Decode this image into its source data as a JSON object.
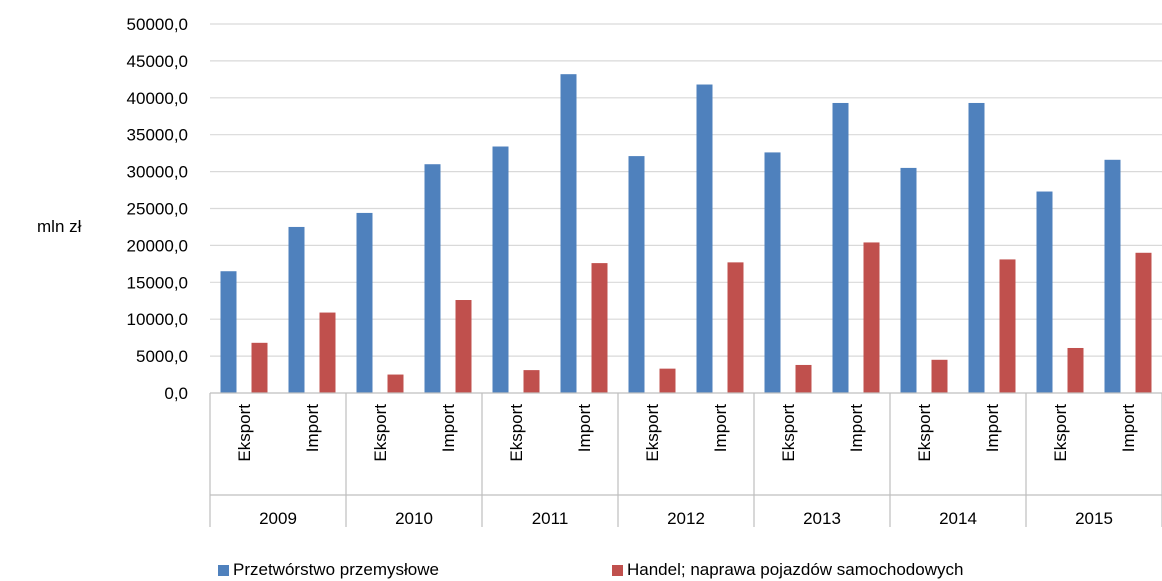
{
  "chart_data": {
    "type": "bar",
    "ylabel": "mln zł",
    "ylim": [
      0,
      50000
    ],
    "y_ticks": [
      "0,0",
      "5000,0",
      "10000,0",
      "15000,0",
      "20000,0",
      "25000,0",
      "30000,0",
      "35000,0",
      "40000,0",
      "45000,0",
      "50000,0"
    ],
    "y_tick_values": [
      0,
      5000,
      10000,
      15000,
      20000,
      25000,
      30000,
      35000,
      40000,
      45000,
      50000
    ],
    "grid": true,
    "legend_position": "bottom",
    "groups": [
      "2009",
      "2010",
      "2011",
      "2012",
      "2013",
      "2014",
      "2015"
    ],
    "subcategories": [
      "Eksport",
      "Import"
    ],
    "categories": [
      "2009 Eksport",
      "2009 Import",
      "2010 Eksport",
      "2010 Import",
      "2011 Eksport",
      "2011 Import",
      "2012 Eksport",
      "2012 Import",
      "2013 Eksport",
      "2013 Import",
      "2014 Eksport",
      "2014 Import",
      "2015 Eksport",
      "2015 Import"
    ],
    "series": [
      {
        "name": "Przetwórstwo przemysłowe",
        "color": "#4F81BD",
        "values": [
          16500,
          22500,
          24400,
          31000,
          33400,
          43200,
          32100,
          41800,
          32600,
          39300,
          30500,
          39300,
          27300,
          31600
        ]
      },
      {
        "name": "Handel; naprawa pojazdów samochodowych",
        "color": "#C0504D",
        "values": [
          6800,
          10900,
          2500,
          12600,
          3100,
          17600,
          3300,
          17700,
          3800,
          20400,
          4500,
          18100,
          6100,
          19000
        ]
      }
    ]
  }
}
